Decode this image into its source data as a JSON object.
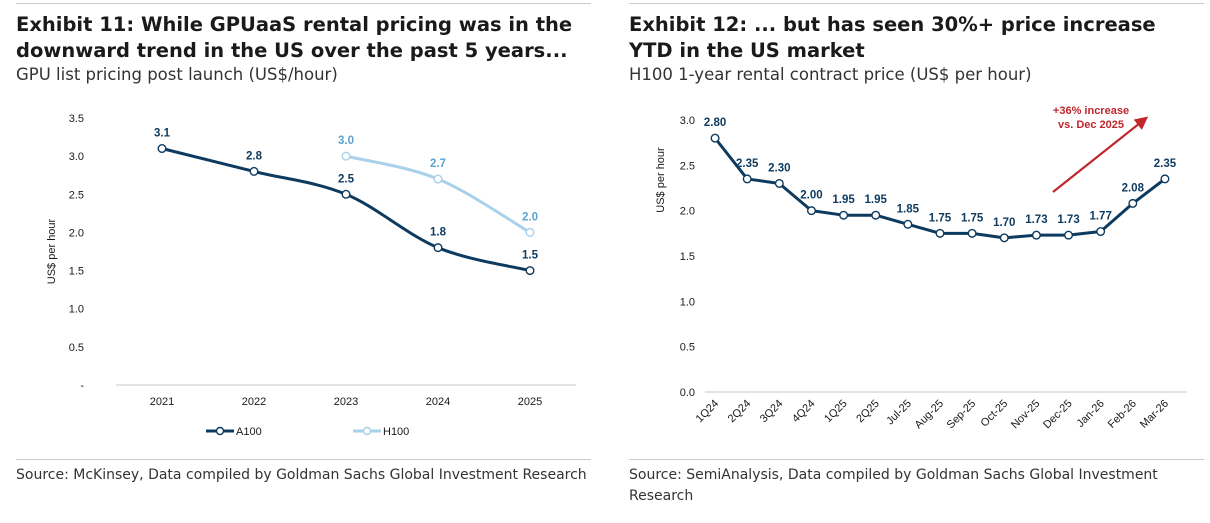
{
  "panels": [
    {
      "title": "Exhibit 11: While GPUaaS rental pricing was in the downward trend in the US over the past 5 years...",
      "subtitle": "GPU list pricing post launch (US$/hour)",
      "source": "Source: McKinsey, Data compiled by Goldman Sachs Global Investment Research"
    },
    {
      "title": "Exhibit 12: ... but has seen 30%+ price increase YTD in the US market",
      "subtitle": "H100 1-year rental contract price (US$ per hour)",
      "source": "Source: SemiAnalysis, Data compiled by Goldman Sachs Global Investment Research"
    }
  ],
  "colors": {
    "a100": "#0d3a5f",
    "h100": "#a9d1ea",
    "h100_label": "#5aa3cf",
    "annotation": "#c0272d",
    "axis": "#c8c8c8"
  },
  "chart_data": [
    {
      "type": "line",
      "categories": [
        "2021",
        "2022",
        "2023",
        "2024",
        "2025"
      ],
      "ylabel": "US$ per hour",
      "ylim": [
        0,
        3.5
      ],
      "yticks": [
        "-",
        "0.5",
        "1.0",
        "1.5",
        "2.0",
        "2.5",
        "3.0",
        "3.5"
      ],
      "grid": false,
      "legend_position": "bottom",
      "series": [
        {
          "name": "A100",
          "values": [
            3.1,
            2.8,
            2.5,
            1.8,
            1.5
          ],
          "labels": [
            "3.1",
            "2.8",
            "2.5",
            "1.8",
            "1.5"
          ]
        },
        {
          "name": "H100",
          "values": [
            null,
            null,
            3.0,
            2.7,
            2.0
          ],
          "labels": [
            "",
            "",
            "3.0",
            "2.7",
            "2.0"
          ]
        }
      ]
    },
    {
      "type": "line",
      "categories": [
        "1Q24",
        "2Q24",
        "3Q24",
        "4Q24",
        "1Q25",
        "2Q25",
        "Jul-25",
        "Aug-25",
        "Sep-25",
        "Oct-25",
        "Nov-25",
        "Dec-25",
        "Jan-26",
        "Feb-26",
        "Mar-26"
      ],
      "ylabel": "US$ per hour",
      "ylim": [
        0,
        3.0
      ],
      "yticks": [
        "0.0",
        "0.5",
        "1.0",
        "1.5",
        "2.0",
        "2.5",
        "3.0"
      ],
      "grid": false,
      "series": [
        {
          "values": [
            2.8,
            2.35,
            2.3,
            2.0,
            1.95,
            1.95,
            1.85,
            1.75,
            1.75,
            1.7,
            1.73,
            1.73,
            1.77,
            2.08,
            2.35
          ],
          "labels": [
            "2.80",
            "2.35",
            "2.30",
            "2.00",
            "1.95",
            "1.95",
            "1.85",
            "1.75",
            "1.75",
            "1.70",
            "1.73",
            "1.73",
            "1.77",
            "2.08",
            "2.35"
          ]
        }
      ],
      "annotation": {
        "lines": [
          "+36% increase",
          "vs. Dec 2025"
        ]
      }
    }
  ]
}
